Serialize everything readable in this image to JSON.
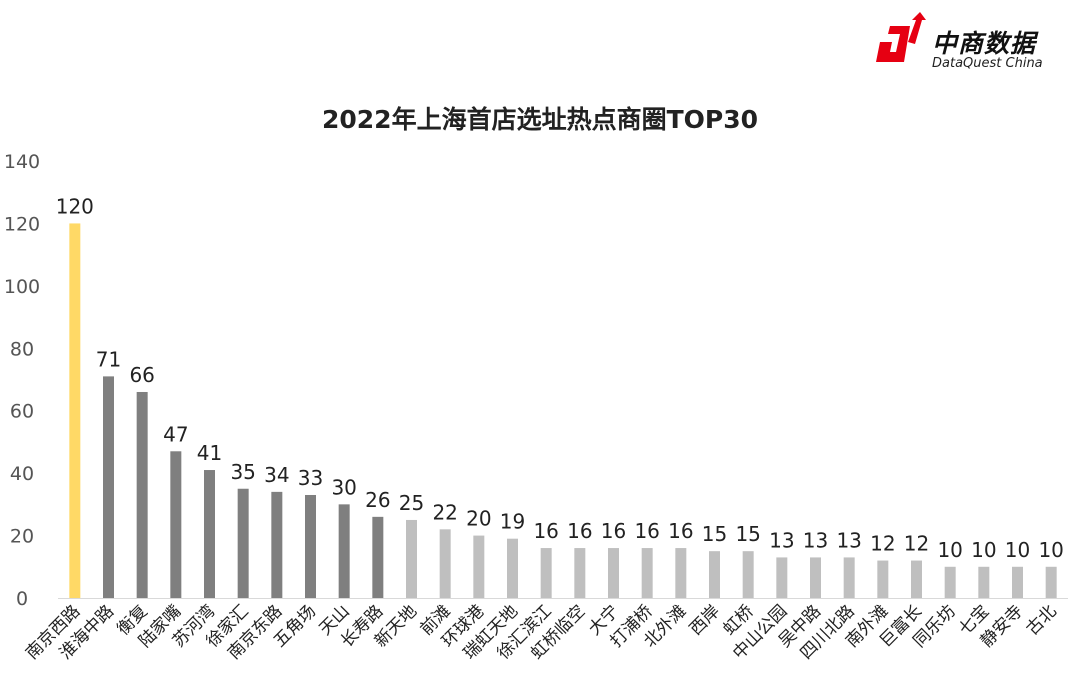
{
  "brand": {
    "name_cn": "中商数据",
    "name_en": "DataQuest China",
    "color": "#e60012"
  },
  "chart_data": {
    "type": "bar",
    "title": "2022年上海首店选址热点商圈TOP30",
    "xlabel": "",
    "ylabel": "",
    "ylim": [
      0,
      140
    ],
    "yticks": [
      0,
      20,
      40,
      60,
      80,
      100,
      120,
      140
    ],
    "grid": false,
    "legend": "none",
    "categories": [
      "南京西路",
      "淮海中路",
      "衡复",
      "陆家嘴",
      "苏河湾",
      "徐家汇",
      "南京东路",
      "五角场",
      "天山",
      "长寿路",
      "新天地",
      "前滩",
      "环球港",
      "瑞虹天地",
      "徐汇滨江",
      "虹桥临空",
      "大宁",
      "打浦桥",
      "北外滩",
      "西岸",
      "虹桥",
      "中山公园",
      "吴中路",
      "四川北路",
      "南外滩",
      "巨富长",
      "同乐坊",
      "七宝",
      "静安寺",
      "古北"
    ],
    "values": [
      120,
      71,
      66,
      47,
      41,
      35,
      34,
      33,
      30,
      26,
      25,
      22,
      20,
      19,
      16,
      16,
      16,
      16,
      16,
      15,
      15,
      13,
      13,
      13,
      12,
      12,
      10,
      10,
      10,
      10
    ],
    "colors": {
      "top": "#ffd966",
      "dark": "#7f7f7f",
      "light": "#bfbfbf",
      "axis": "#d9d9d9",
      "text": "#222222",
      "tick": "#555555"
    },
    "color_groups": {
      "top_count": 1,
      "dark_count": 9
    }
  }
}
